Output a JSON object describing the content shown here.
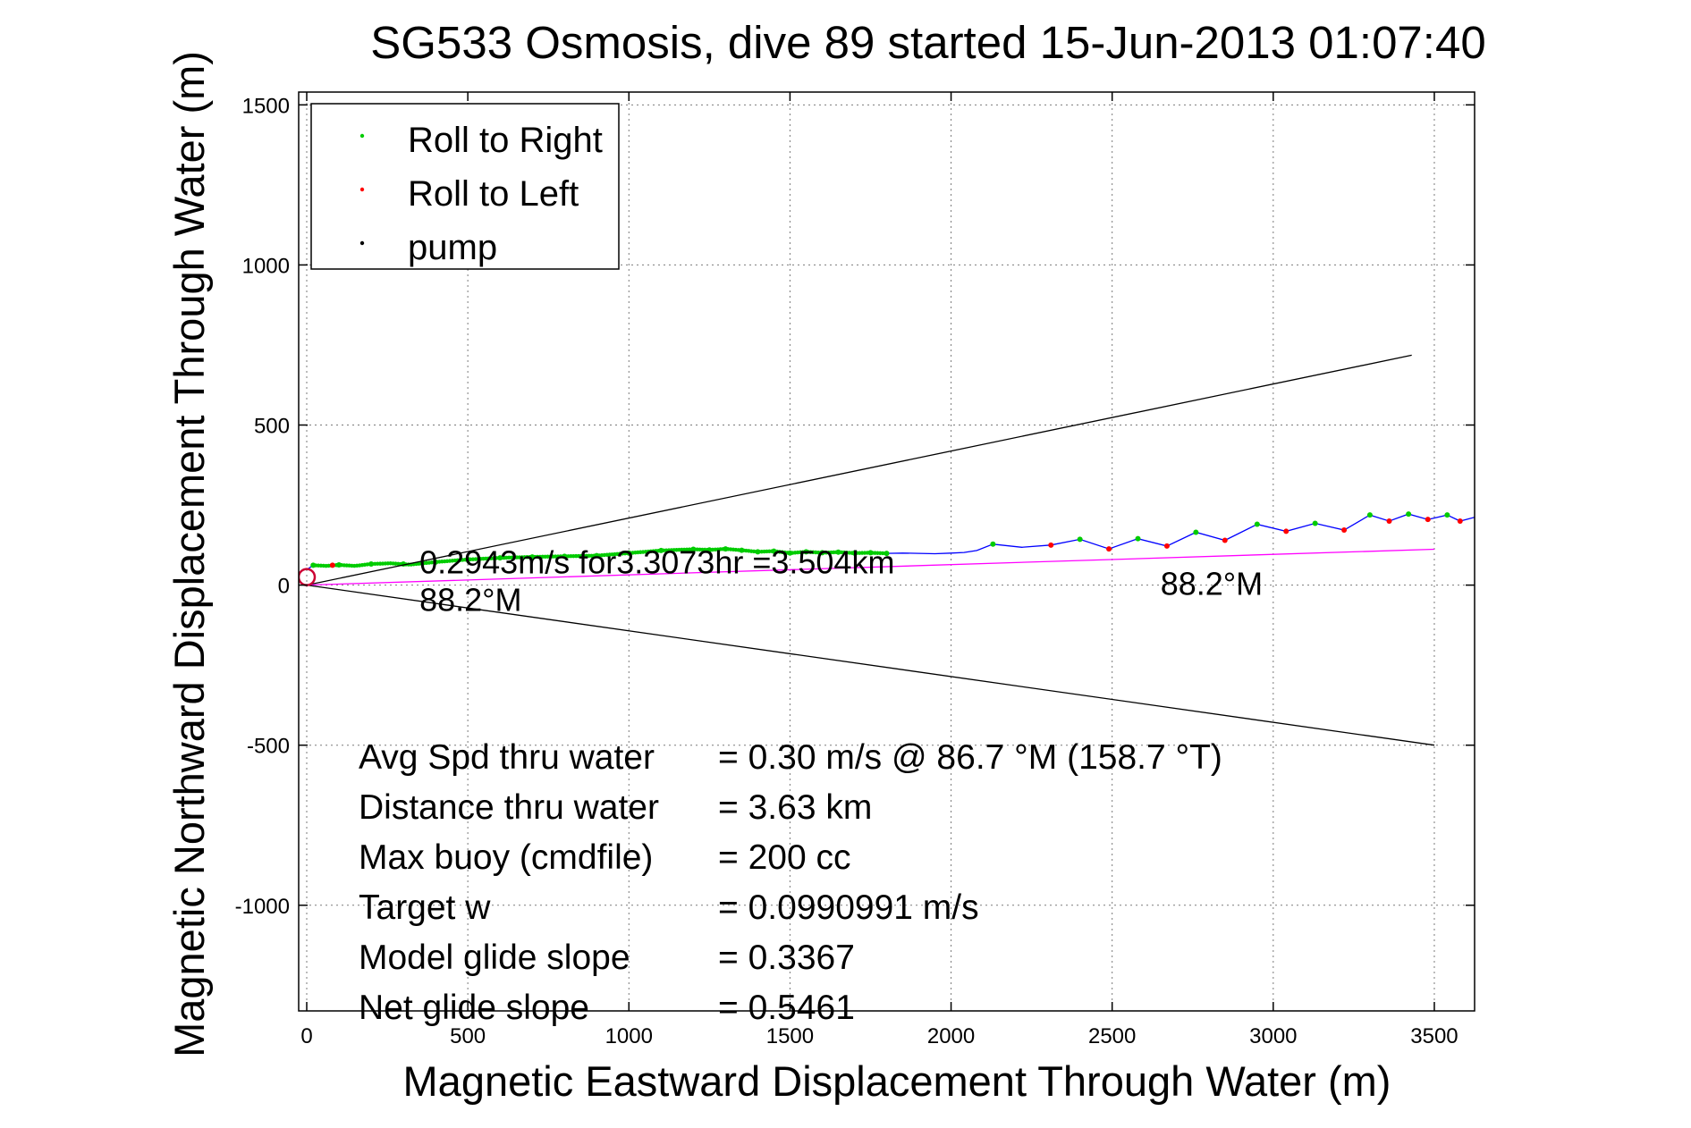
{
  "chart_data": {
    "type": "line",
    "title": "SG533 Osmosis, dive 89 started 15-Jun-2013 01:07:40",
    "xlabel": "Magnetic Eastward Displacement Through Water (m)",
    "ylabel": "Magnetic Northward Displacement Through Water (m)",
    "xlim": [
      -25,
      3625
    ],
    "ylim": [
      -1330,
      1540
    ],
    "xticks": [
      0,
      500,
      1000,
      1500,
      2000,
      2500,
      3000,
      3500
    ],
    "yticks": [
      -1000,
      -500,
      0,
      500,
      1000,
      1500
    ],
    "grid": true,
    "legend": {
      "position": "top-left",
      "entries": [
        {
          "label": "Roll to Right",
          "color": "#00cc00"
        },
        {
          "label": "Roll to Left",
          "color": "#ff0000"
        },
        {
          "label": "pump",
          "color": "#000000"
        }
      ]
    },
    "series": [
      {
        "color": "#0000ff",
        "x": [
          0,
          20,
          60,
          100,
          150,
          200,
          260,
          320,
          400,
          500,
          600,
          700,
          800,
          900,
          1000,
          1100,
          1200,
          1250,
          1300,
          1350,
          1400,
          1450,
          1500,
          1550,
          1600,
          1650,
          1700,
          1750,
          1800,
          1850,
          1900,
          1950,
          2000,
          2040,
          2080,
          2130,
          2220,
          2310,
          2400,
          2490,
          2580,
          2670,
          2760,
          2850,
          2950,
          3040,
          3130,
          3220,
          3300,
          3360,
          3420,
          3480,
          3540,
          3580,
          3625
        ],
        "y": [
          48,
          62,
          60,
          63,
          60,
          66,
          68,
          64,
          72,
          80,
          85,
          88,
          90,
          92,
          100,
          108,
          112,
          110,
          113,
          109,
          104,
          106,
          100,
          104,
          101,
          103,
          100,
          101,
          99,
          100,
          99,
          98,
          100,
          102,
          108,
          128,
          118,
          125,
          143,
          113,
          145,
          122,
          165,
          140,
          190,
          168,
          193,
          172,
          219,
          200,
          222,
          205,
          219,
          200,
          212
        ]
      },
      {
        "name": "Roll to Right",
        "color": "#00cc00",
        "x": [
          20,
          100,
          200,
          300,
          400,
          500,
          600,
          700,
          800,
          900,
          1000,
          1100,
          1200,
          1250,
          1300,
          1350,
          1400,
          1450,
          1500,
          1550,
          1600,
          1650,
          1700,
          1750,
          1800,
          2130,
          2400,
          2580,
          2760,
          2950,
          3130,
          3300,
          3420,
          3540
        ],
        "y": [
          62,
          63,
          66,
          66,
          72,
          80,
          85,
          88,
          90,
          92,
          100,
          108,
          112,
          110,
          113,
          109,
          104,
          106,
          100,
          104,
          101,
          103,
          100,
          101,
          99,
          128,
          143,
          145,
          165,
          190,
          193,
          219,
          222,
          219
        ]
      },
      {
        "name": "Roll to Left",
        "color": "#ff0000",
        "x": [
          80,
          2310,
          2490,
          2670,
          2850,
          3040,
          3220,
          3360,
          3480,
          3580
        ],
        "y": [
          62,
          125,
          113,
          122,
          140,
          168,
          172,
          200,
          205,
          200
        ]
      },
      {
        "color": "#ff00ff",
        "x": [
          0,
          3500
        ],
        "y": [
          0,
          112
        ]
      },
      {
        "color": "#000000",
        "x": [
          0,
          3430
        ],
        "y": [
          0,
          718
        ]
      },
      {
        "color": "#000000",
        "x": [
          0,
          3500
        ],
        "y": [
          0,
          -500
        ]
      }
    ],
    "annotations": [
      {
        "text": "0.2943m/s for3.3073hr =3.504km",
        "x": 350,
        "y": 36
      },
      {
        "text": "88.2°M",
        "x": 350,
        "y": -80
      },
      {
        "text": "88.2°M",
        "x": 2650,
        "y": -30
      }
    ],
    "stats": [
      {
        "label": "Avg Spd thru water",
        "value": "=  0.30 m/s @  86.7 °M (158.7 °T)"
      },
      {
        "label": "Distance thru water",
        "value": "=  3.63 km"
      },
      {
        "label": "Max buoy (cmdfile)",
        "value": "= 200 cc"
      },
      {
        "label": "Target w",
        "value": "= 0.0990991 m/s"
      },
      {
        "label": "Model glide slope",
        "value": "= 0.3367"
      },
      {
        "label": "Net glide slope",
        "value": "= 0.5461"
      }
    ]
  }
}
